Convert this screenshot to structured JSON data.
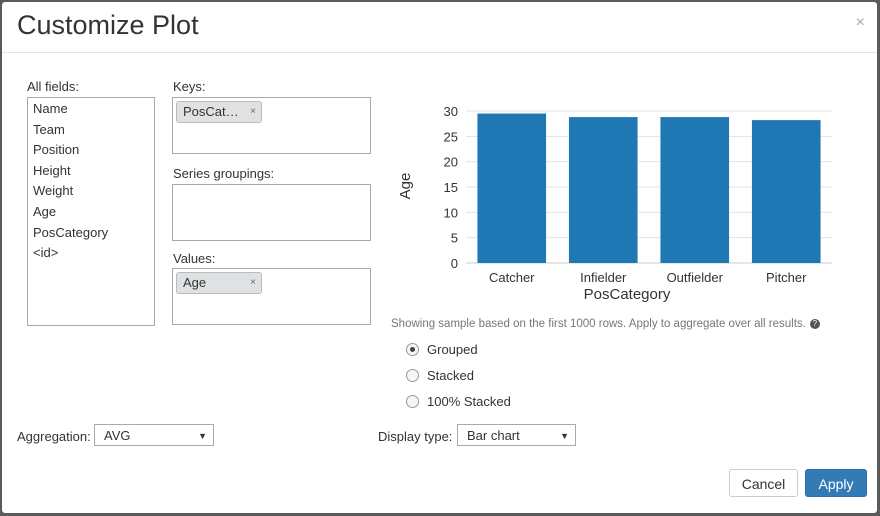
{
  "dialog": {
    "title": "Customize Plot",
    "close_glyph": "×"
  },
  "fields": {
    "label": "All fields:",
    "items": [
      "Name",
      "Team",
      "Position",
      "Height",
      "Weight",
      "Age",
      "PosCategory",
      "<id>"
    ]
  },
  "keys": {
    "label": "Keys:",
    "pills": [
      {
        "text": "PosCat…",
        "remove": "×"
      }
    ]
  },
  "series": {
    "label": "Series groupings:"
  },
  "values": {
    "label": "Values:",
    "pills": [
      {
        "text": "Age",
        "remove": "×"
      }
    ]
  },
  "chart_data": {
    "type": "bar",
    "categories": [
      "Catcher",
      "Infielder",
      "Outfielder",
      "Pitcher"
    ],
    "values": [
      29.5,
      28.8,
      28.8,
      28.2
    ],
    "xlabel": "PosCategory",
    "ylabel": "Age",
    "ylim": [
      0,
      30
    ],
    "yticks": [
      0,
      5,
      10,
      15,
      20,
      25,
      30
    ],
    "grid": true,
    "bar_color": "#1f77b4"
  },
  "note": {
    "text": "Showing sample based on the first 1000 rows. Apply to aggregate over all results.",
    "help_icon": "?"
  },
  "layout_options": {
    "options": [
      "Grouped",
      "Stacked",
      "100% Stacked"
    ],
    "selected": "Grouped"
  },
  "aggregation": {
    "label": "Aggregation:",
    "value": "AVG",
    "arrow": "▼"
  },
  "display_type": {
    "label": "Display type:",
    "value": "Bar chart",
    "arrow": "▼"
  },
  "buttons": {
    "cancel": "Cancel",
    "apply": "Apply"
  },
  "colors": {
    "accent": "#337ab7",
    "bar": "#1f77b4"
  }
}
